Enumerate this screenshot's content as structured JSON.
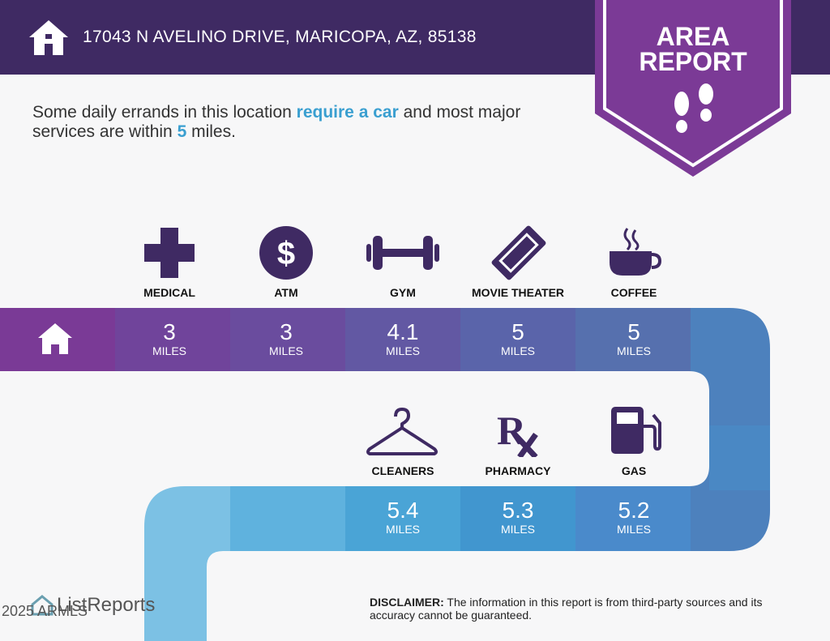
{
  "header": {
    "address": "17043 N AVELINO DRIVE, MARICOPA, AZ, 85138"
  },
  "badge": {
    "line1": "AREA",
    "line2": "REPORT"
  },
  "intro": {
    "part1": "Some daily errands in this location ",
    "highlight1": "require a car",
    "part2": " and most major services are within ",
    "highlight2": "5",
    "part3": " miles."
  },
  "row1": [
    {
      "label": "MEDICAL",
      "value": "3",
      "unit": "MILES",
      "icon": "medical-cross-icon"
    },
    {
      "label": "ATM",
      "value": "3",
      "unit": "MILES",
      "icon": "dollar-icon"
    },
    {
      "label": "GYM",
      "value": "4.1",
      "unit": "MILES",
      "icon": "dumbbell-icon"
    },
    {
      "label": "MOVIE THEATER",
      "value": "5",
      "unit": "MILES",
      "icon": "ticket-icon"
    },
    {
      "label": "COFFEE",
      "value": "5",
      "unit": "MILES",
      "icon": "coffee-cup-icon"
    }
  ],
  "row2": [
    {
      "label": "CLEANERS",
      "value": "5.4",
      "unit": "MILES",
      "icon": "hanger-icon"
    },
    {
      "label": "PHARMACY",
      "value": "5.3",
      "unit": "MILES",
      "icon": "rx-icon"
    },
    {
      "label": "GAS",
      "value": "5.2",
      "unit": "MILES",
      "icon": "gas-pump-icon"
    }
  ],
  "footer": {
    "logo": "ListReports",
    "copyright": "2025 ARMLS",
    "disclaimer_label": "DISCLAIMER:",
    "disclaimer_text": " The information in this report is from third-party sources and its accuracy cannot be guaranteed."
  },
  "colors": {
    "header": "#3f2a63",
    "badge": "#7b3a96",
    "highlight": "#3a9fd0"
  }
}
